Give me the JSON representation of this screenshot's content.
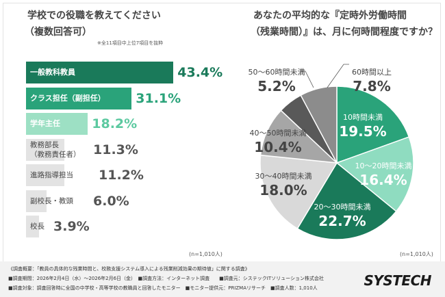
{
  "left_panel": {
    "title_line1": "学校での役職を教えてください",
    "title_line2": "（複数回答可）",
    "note": "※全11項目中上位7項目を抜粋",
    "n_label": "(n=1,010人)"
  },
  "right_panel": {
    "title_line1": "あなたの平均的な『定時外労働時間",
    "title_line2": "（残業時間）』は、月に何時間程度ですか？",
    "n_label": "(n=1,010人)"
  },
  "chart_data": [
    {
      "type": "bar",
      "orientation": "horizontal",
      "title": "学校での役職を教えてください（複数回答可）",
      "categories": [
        "一般教科教員",
        "クラス担任（副担任）",
        "学年主任",
        "教務部長（教務責任者）",
        "進路指導担当",
        "副校長・教頭",
        "校長"
      ],
      "values": [
        43.4,
        31.1,
        18.2,
        11.3,
        11.2,
        6.0,
        3.9
      ],
      "value_labels": [
        "43.4%",
        "31.1%",
        "18.2%",
        "11.3%",
        "11.2%",
        "6.0%",
        "3.9%"
      ],
      "category_lines": [
        [
          "一般教科教員"
        ],
        [
          "クラス担任（副担任）"
        ],
        [
          "学年主任"
        ],
        [
          "教務部長",
          "（教務責任者）"
        ],
        [
          "進路指導担当"
        ],
        [
          "副校長・教頭"
        ],
        [
          "校長"
        ]
      ],
      "colors": [
        "#1a7a5a",
        "#2aa37a",
        "#9de0c4",
        "#e3e3e3",
        "#e3e3e3",
        "#e3e3e3",
        "#e3e3e3"
      ],
      "label_colors": [
        "#ffffff",
        "#ffffff",
        "#ffffff",
        "#444444",
        "#444444",
        "#444444",
        "#444444"
      ],
      "value_colors": [
        "#1a7a5a",
        "#2aa37a",
        "#5cc9a0",
        "#555555",
        "#555555",
        "#555555",
        "#555555"
      ],
      "xlim": [
        0,
        50
      ]
    },
    {
      "type": "pie",
      "title": "あなたの平均的な『定時外労働時間（残業時間）』は、月に何時間程度ですか？",
      "categories": [
        "10時間未満",
        "10〜20時間未満",
        "20〜30時間未満",
        "30〜40時間未満",
        "40〜50時間未満",
        "50〜60時間未満",
        "60時間以上"
      ],
      "values": [
        19.5,
        16.4,
        22.7,
        18.0,
        10.4,
        5.2,
        7.8
      ],
      "value_labels": [
        "19.5%",
        "16.4%",
        "22.7%",
        "18.0%",
        "10.4%",
        "5.2%",
        "7.8%"
      ],
      "colors": [
        "#2aa37a",
        "#8fdcc0",
        "#1a7a5a",
        "#d9d9d9",
        "#a6a6a6",
        "#595959",
        "#8c8c8c"
      ]
    }
  ],
  "footer": {
    "line1": "《調査概要：「教員の具体的な残業時間と、校務支援システム導入による残業削減効果の期待値」に関する調査》",
    "line2": "■調査期間：2026年2月4日（水）〜2026年2月6日（金）　■調査方法：インターネット調査　　■調査元：システックITソリューション株式会社",
    "line3": "■調査対象：調査回答時に全国の中学校・高等学校の教職員と回答したモニター　■モニター提供元：PRIZMAリサーチ　■調査人数：1,010人",
    "logo": "SYSTECH"
  }
}
